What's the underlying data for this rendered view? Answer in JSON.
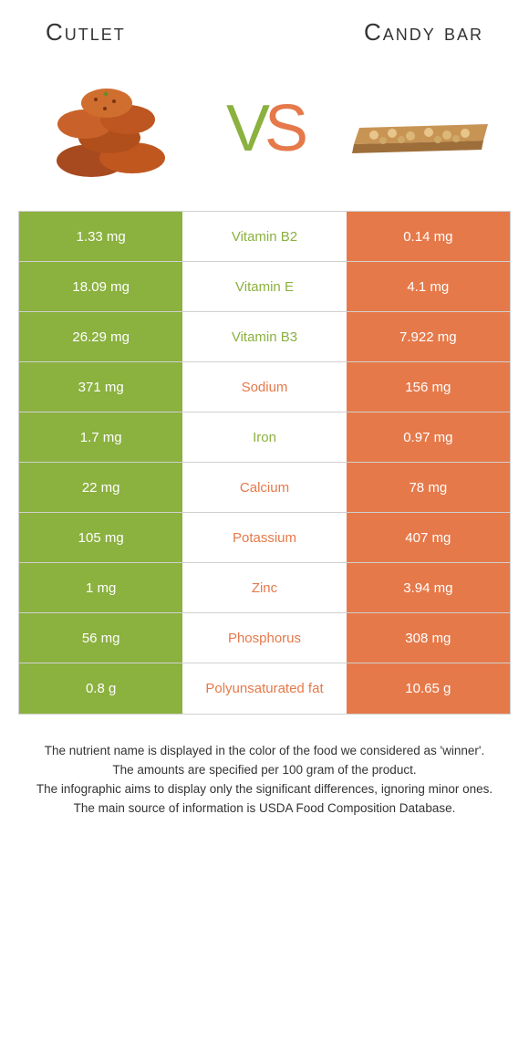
{
  "colors": {
    "left": "#8bb13f",
    "right": "#e6794a",
    "border": "#d0d0d0",
    "mid_bg": "#ffffff"
  },
  "header": {
    "left_title": "Cutlet",
    "right_title": "Candy bar"
  },
  "vs": {
    "v": "V",
    "s": "S"
  },
  "rows": [
    {
      "left": "1.33 mg",
      "mid": "Vitamin B2",
      "right": "0.14 mg",
      "winner": "left"
    },
    {
      "left": "18.09 mg",
      "mid": "Vitamin E",
      "right": "4.1 mg",
      "winner": "left"
    },
    {
      "left": "26.29 mg",
      "mid": "Vitamin B3",
      "right": "7.922 mg",
      "winner": "left"
    },
    {
      "left": "371 mg",
      "mid": "Sodium",
      "right": "156 mg",
      "winner": "right"
    },
    {
      "left": "1.7 mg",
      "mid": "Iron",
      "right": "0.97 mg",
      "winner": "left"
    },
    {
      "left": "22 mg",
      "mid": "Calcium",
      "right": "78 mg",
      "winner": "right"
    },
    {
      "left": "105 mg",
      "mid": "Potassium",
      "right": "407 mg",
      "winner": "right"
    },
    {
      "left": "1 mg",
      "mid": "Zinc",
      "right": "3.94 mg",
      "winner": "right"
    },
    {
      "left": "56 mg",
      "mid": "Phosphorus",
      "right": "308 mg",
      "winner": "right"
    },
    {
      "left": "0.8 g",
      "mid": "Polyunsaturated fat",
      "right": "10.65 g",
      "winner": "right"
    }
  ],
  "footnotes": {
    "line1": "The nutrient name is displayed in the color of the food we considered as 'winner'.",
    "line2": "The amounts are specified per 100 gram of the product.",
    "line3": "The infographic aims to display only the significant differences, ignoring minor ones.",
    "line4": "The main source of information is USDA Food Composition Database."
  }
}
